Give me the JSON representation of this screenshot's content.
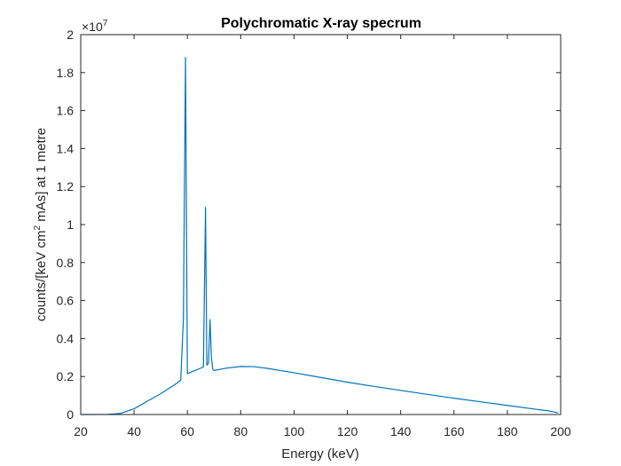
{
  "chart_data": {
    "type": "line",
    "title": "Polychromatic X-ray specrum",
    "xlabel": "Energy (keV)",
    "ylabel": {
      "before_first_sup": "counts/[keV cm",
      "first_sup": "2",
      "after_first_sup": " mAs] at 1 metre"
    },
    "y_multiplier": {
      "base": "×10",
      "exponent": "7"
    },
    "xlim": [
      20,
      200
    ],
    "ylim": [
      0,
      2
    ],
    "xticks": [
      20,
      40,
      60,
      80,
      100,
      120,
      140,
      160,
      180,
      200
    ],
    "yticks": [
      0,
      0.2,
      0.4,
      0.6,
      0.8,
      1,
      1.2,
      1.4,
      1.6,
      1.8,
      2
    ],
    "xtick_labels": [
      "20",
      "40",
      "60",
      "80",
      "100",
      "120",
      "140",
      "160",
      "180",
      "200"
    ],
    "ytick_labels": [
      "0",
      "0.2",
      "0.4",
      "0.6",
      "0.8",
      "1",
      "1.2",
      "1.4",
      "1.6",
      "1.8",
      "2"
    ],
    "grid": false,
    "line_color": "#0072BD",
    "series": [
      {
        "x": [
          20,
          30,
          35,
          40,
          45,
          50,
          55,
          57.5,
          58.5,
          59.3,
          60.0,
          66.0,
          66.8,
          67.3,
          67.9,
          68.5,
          69.0,
          69.5,
          70.0,
          75,
          80,
          85,
          90,
          100,
          110,
          120,
          130,
          140,
          150,
          160,
          170,
          180,
          190,
          195,
          198,
          199
        ],
        "y": [
          0,
          0.0005,
          0.006,
          0.03,
          0.07,
          0.11,
          0.155,
          0.18,
          0.5,
          1.88,
          0.215,
          0.25,
          1.09,
          0.26,
          0.27,
          0.5,
          0.3,
          0.24,
          0.232,
          0.245,
          0.253,
          0.252,
          0.243,
          0.22,
          0.195,
          0.17,
          0.148,
          0.127,
          0.106,
          0.086,
          0.067,
          0.048,
          0.029,
          0.02,
          0.012,
          0.008
        ]
      }
    ]
  }
}
